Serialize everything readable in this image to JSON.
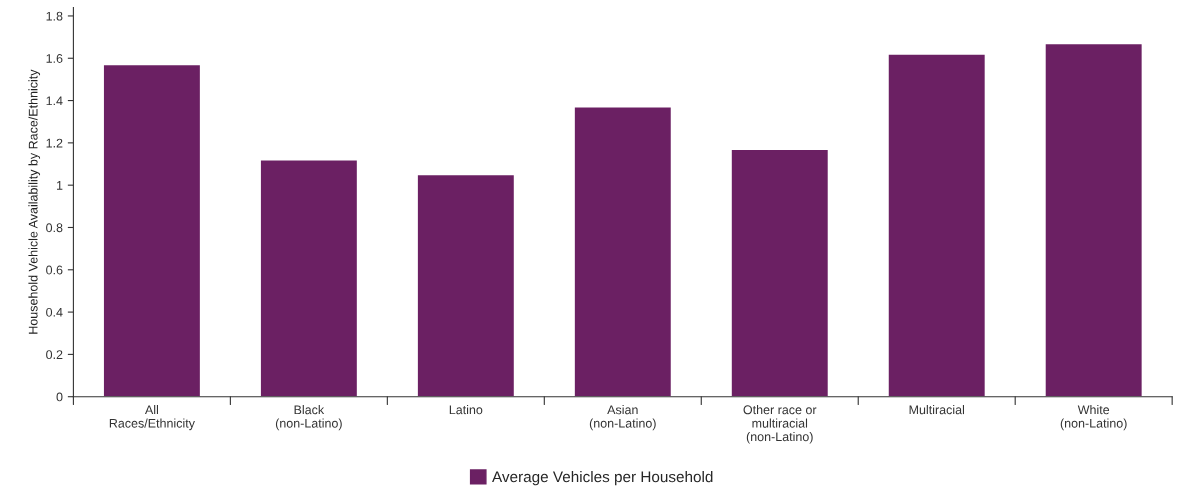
{
  "chart_data": {
    "type": "bar",
    "ylabel": "Household Vehicle Availability by Race/Ethnicity",
    "categories": [
      "All\nRaces/Ethnicity",
      "Black\n(non-Latino)",
      "Latino",
      "Asian\n(non-Latino)",
      "Other race or\nmultiracial\n(non-Latino)",
      "Multiracial",
      "White\n(non-Latino)"
    ],
    "series": [
      {
        "name": "Average Vehicles per Household",
        "color": "#6b2063",
        "values": [
          1.57,
          1.12,
          1.05,
          1.37,
          1.17,
          1.62,
          1.67
        ]
      }
    ],
    "ylim": [
      0,
      1.84
    ],
    "yticks": [
      0,
      0.2,
      0.4,
      0.6,
      0.8,
      1,
      1.2,
      1.4,
      1.6,
      1.8
    ],
    "grid": false,
    "legend": "bottom"
  }
}
